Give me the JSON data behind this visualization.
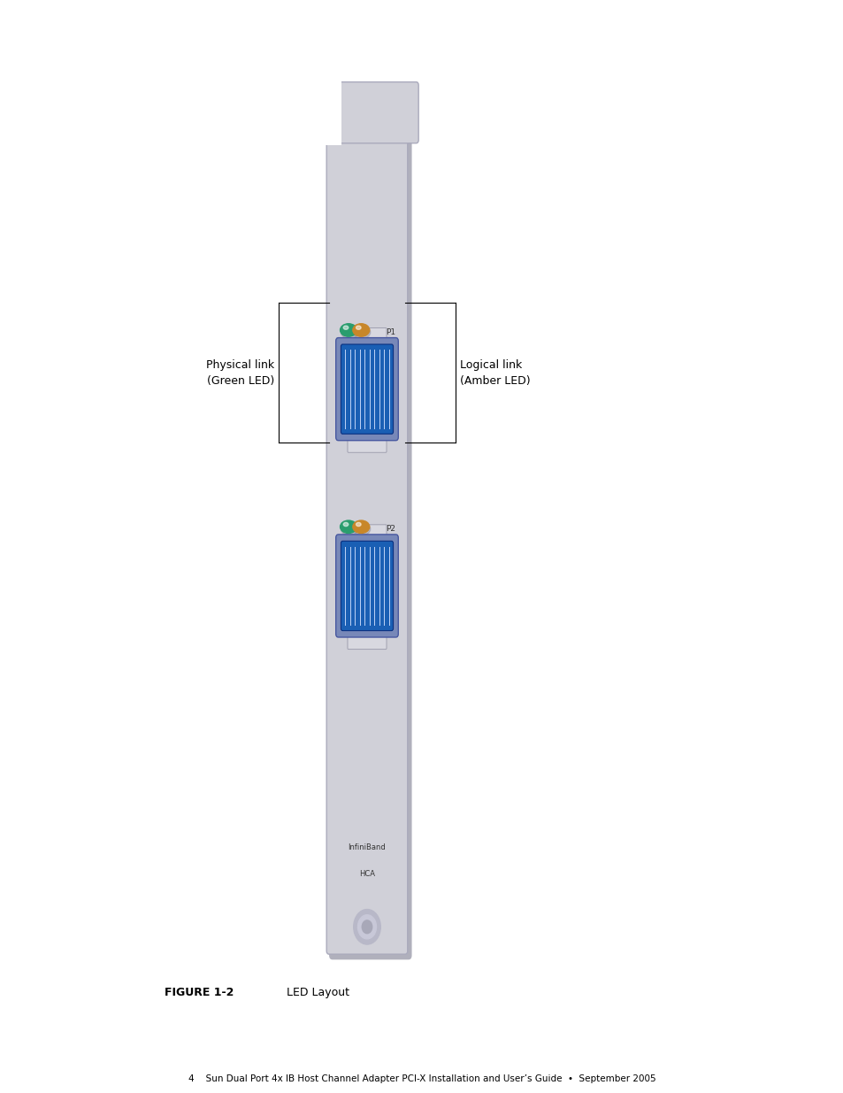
{
  "bg_color": "#ffffff",
  "card_color": "#d0d0d8",
  "card_shadow": "#a0a0a8",
  "led_green_color": "#2a9d6e",
  "led_amber_color": "#c8872a",
  "port_blue_color": "#1a5fb4",
  "label_left": "Physical link\n(Green LED)",
  "label_right": "Logical link\n(Amber LED)",
  "label_infiniband": "InfiniBand",
  "label_hca": "HCA",
  "label_p1": "P1",
  "label_p2": "P2",
  "figure_label": "FIGURE 1-2",
  "figure_title": "LED Layout",
  "footer_text": "4    Sun Dual Port 4x IB Host Channel Adapter PCI-X Installation and User’s Guide  •  September 2005"
}
